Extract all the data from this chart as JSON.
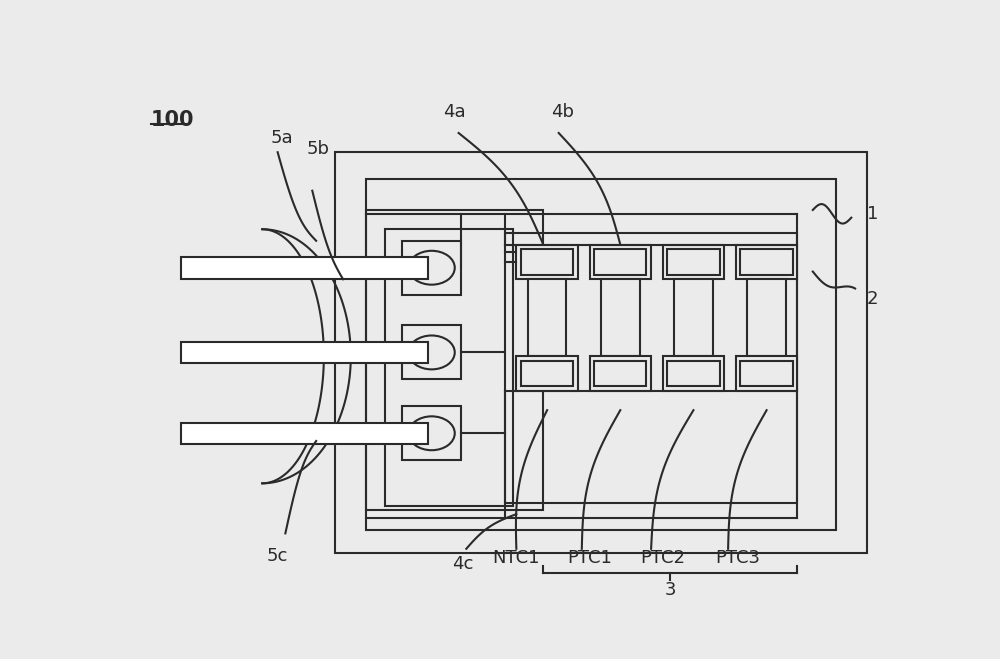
{
  "bg_color": "#ebebeb",
  "line_color": "#2a2a2a",
  "label_100": "100",
  "label_1": "1",
  "label_2": "2",
  "label_3": "3",
  "label_4a": "4a",
  "label_4b": "4b",
  "label_4c": "4c",
  "label_5a": "5a",
  "label_5b": "5b",
  "label_5c": "5c",
  "label_ntc1": "NTC1",
  "label_ptc1": "PTC1",
  "label_ptc2": "PTC2",
  "label_ptc3": "PTC3",
  "figsize": [
    10.0,
    6.59
  ],
  "dpi": 100
}
